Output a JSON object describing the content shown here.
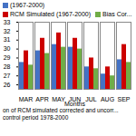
{
  "chart_data": {
    "type": "bar",
    "categories": [
      "MAR",
      "APR",
      "MAY",
      "JUN",
      "JUL",
      "AUG",
      "SEP"
    ],
    "series": [
      {
        "name": "(1967-2000)",
        "color": "#4472C4",
        "values": [
          28.5,
          29.8,
          30.5,
          30.2,
          28.0,
          27.2,
          28.8
        ]
      },
      {
        "name": "RCM Simulated (1967-2000)",
        "color": "#CC0000",
        "values": [
          29.8,
          31.2,
          31.8,
          31.2,
          29.0,
          28.0,
          30.5
        ]
      },
      {
        "name": "Bias Cor...",
        "color": "#70AD47",
        "values": [
          28.2,
          29.5,
          30.2,
          30.0,
          27.8,
          27.0,
          28.5
        ]
      }
    ],
    "xlabel": "Months",
    "ylim": [
      25.5,
      33.0
    ],
    "yticks": [
      26,
      27,
      28,
      29,
      30,
      31,
      32,
      33
    ],
    "grid": false,
    "legend": "top",
    "annotations": [
      "on of RCM simulated corrected and uncorr...",
      "control period 1978-2000"
    ]
  }
}
